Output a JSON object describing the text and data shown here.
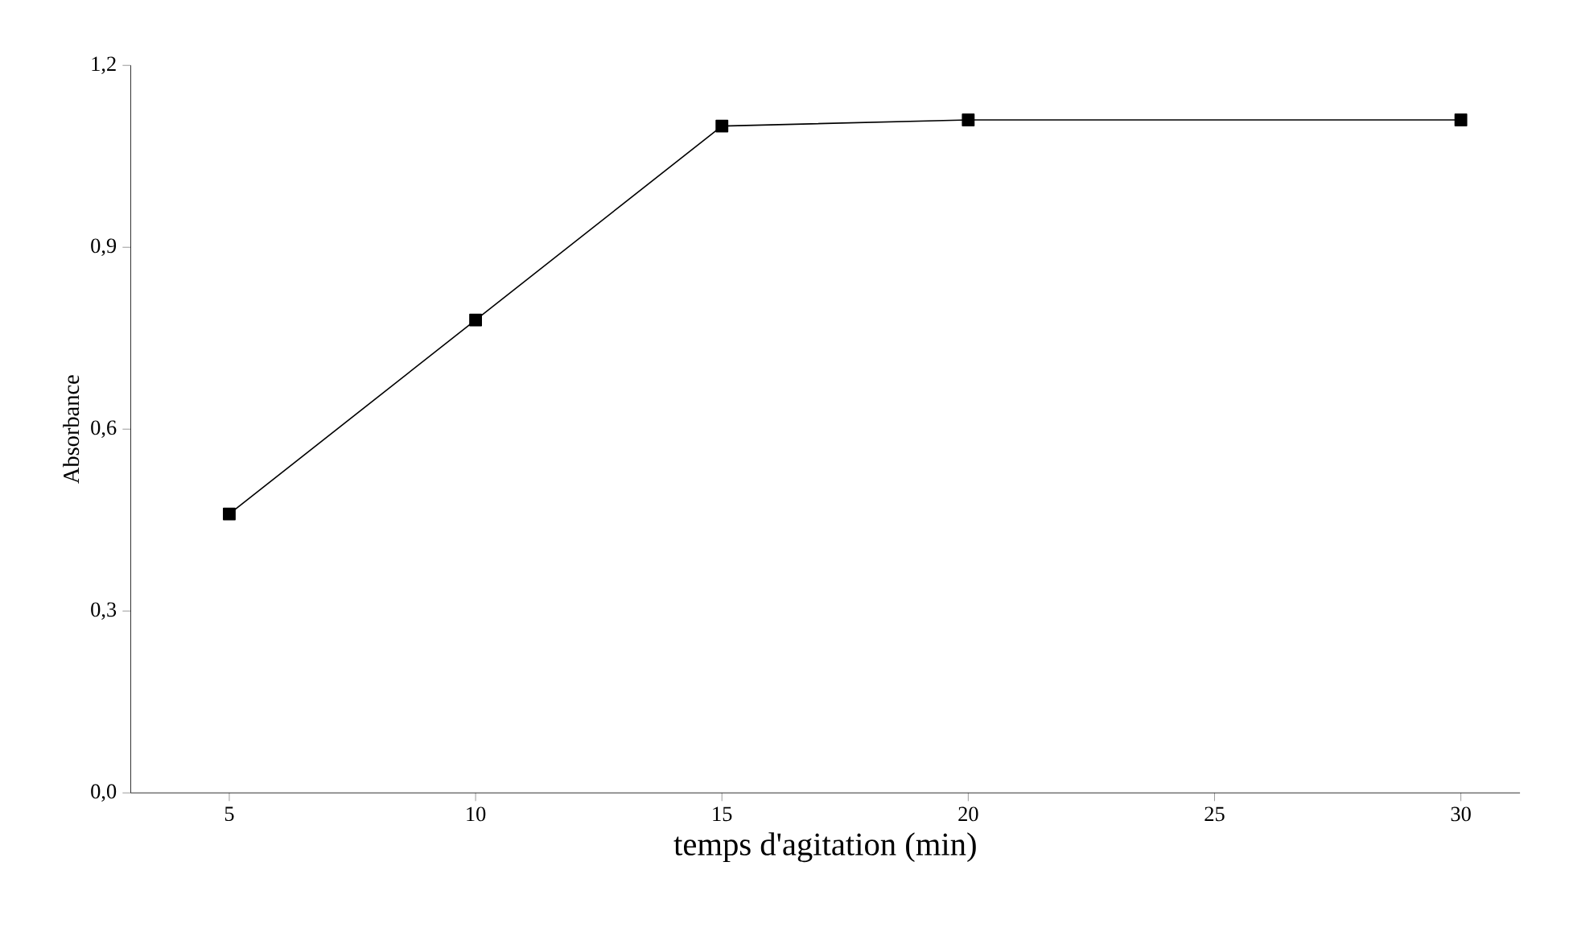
{
  "chart_data": {
    "type": "line",
    "xlabel": "temps d'agitation (min)",
    "ylabel": "Absorbance",
    "x": [
      5,
      10,
      15,
      20,
      30
    ],
    "series": [
      {
        "color": "#000000",
        "values": [
          0.46,
          0.78,
          1.1,
          1.11,
          1.11
        ]
      }
    ],
    "xlim": [
      3,
      31.2
    ],
    "ylim": [
      0,
      1.2
    ],
    "xticks": [
      5,
      10,
      15,
      20,
      25,
      30
    ],
    "yticks": [
      {
        "value": 0,
        "label": "0,0"
      },
      {
        "value": 0.3,
        "label": "0,3"
      },
      {
        "value": 0.6,
        "label": "0,6"
      },
      {
        "value": 0.9,
        "label": "0,9"
      },
      {
        "value": 1.2,
        "label": "1,2"
      }
    ],
    "grid": false,
    "marker": "square",
    "line_style": "solid"
  }
}
